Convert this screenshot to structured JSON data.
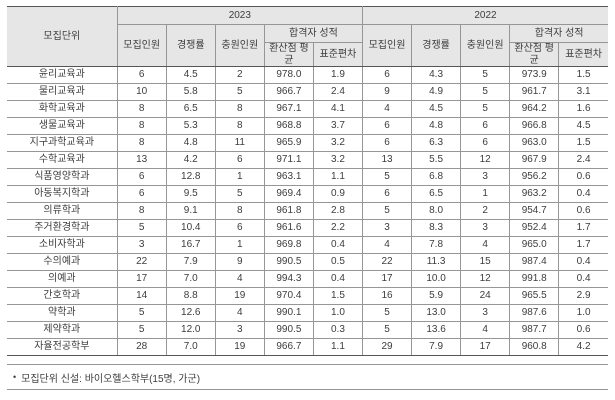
{
  "table": {
    "unit_header": "모집단위",
    "years": [
      "2023",
      "2022"
    ],
    "sub_headers": {
      "recruit": "모집인원",
      "ratio": "경쟁률",
      "fill": "충원인원",
      "score_group": "합격자 성적",
      "avg": "환산점 평균",
      "std": "표준편차"
    },
    "rows": [
      {
        "name": "윤리교육과",
        "values": [
          "6",
          "4.5",
          "2",
          "978.0",
          "1.9",
          "6",
          "4.3",
          "5",
          "973.9",
          "1.5"
        ]
      },
      {
        "name": "물리교육과",
        "values": [
          "10",
          "5.8",
          "5",
          "966.7",
          "2.4",
          "9",
          "4.9",
          "5",
          "961.7",
          "3.1"
        ]
      },
      {
        "name": "화학교육과",
        "values": [
          "8",
          "6.5",
          "8",
          "967.1",
          "4.1",
          "4",
          "4.5",
          "5",
          "964.2",
          "1.6"
        ]
      },
      {
        "name": "생물교육과",
        "values": [
          "8",
          "5.3",
          "8",
          "968.8",
          "3.7",
          "6",
          "4.8",
          "6",
          "966.8",
          "4.5"
        ]
      },
      {
        "name": "지구과학교육과",
        "values": [
          "8",
          "4.8",
          "11",
          "965.9",
          "3.2",
          "6",
          "6.3",
          "6",
          "963.0",
          "1.5"
        ]
      },
      {
        "name": "수학교육과",
        "values": [
          "13",
          "4.2",
          "6",
          "971.1",
          "3.2",
          "13",
          "5.5",
          "12",
          "967.9",
          "2.4"
        ]
      },
      {
        "name": "식품영양학과",
        "values": [
          "6",
          "12.8",
          "1",
          "963.1",
          "1.1",
          "5",
          "6.8",
          "3",
          "956.2",
          "0.6"
        ]
      },
      {
        "name": "아동복지학과",
        "values": [
          "6",
          "9.5",
          "5",
          "969.4",
          "0.9",
          "6",
          "6.5",
          "1",
          "963.2",
          "0.4"
        ]
      },
      {
        "name": "의류학과",
        "values": [
          "8",
          "9.1",
          "8",
          "961.8",
          "2.8",
          "5",
          "8.0",
          "2",
          "954.7",
          "0.6"
        ]
      },
      {
        "name": "주거환경학과",
        "values": [
          "5",
          "10.4",
          "6",
          "961.6",
          "2.2",
          "3",
          "8.3",
          "3",
          "952.4",
          "1.7"
        ]
      },
      {
        "name": "소비자학과",
        "values": [
          "3",
          "16.7",
          "1",
          "969.8",
          "0.4",
          "4",
          "7.8",
          "4",
          "965.0",
          "1.7"
        ]
      },
      {
        "name": "수의예과",
        "values": [
          "22",
          "7.9",
          "9",
          "990.5",
          "0.5",
          "22",
          "11.3",
          "15",
          "987.4",
          "0.4"
        ]
      },
      {
        "name": "의예과",
        "values": [
          "17",
          "7.0",
          "4",
          "994.3",
          "0.4",
          "17",
          "10.0",
          "12",
          "991.8",
          "0.4"
        ]
      },
      {
        "name": "간호학과",
        "values": [
          "14",
          "8.8",
          "19",
          "970.4",
          "1.5",
          "16",
          "5.9",
          "24",
          "965.5",
          "2.9"
        ]
      },
      {
        "name": "약학과",
        "values": [
          "5",
          "12.6",
          "4",
          "990.1",
          "1.0",
          "5",
          "13.0",
          "3",
          "987.6",
          "1.0"
        ]
      },
      {
        "name": "제약학과",
        "values": [
          "5",
          "12.0",
          "3",
          "990.5",
          "0.3",
          "5",
          "13.6",
          "4",
          "987.7",
          "0.6"
        ]
      },
      {
        "name": "자율전공학부",
        "values": [
          "28",
          "7.0",
          "19",
          "966.7",
          "1.1",
          "29",
          "7.9",
          "17",
          "960.8",
          "4.2"
        ]
      }
    ]
  },
  "footnote": {
    "bullet": "•",
    "text": "모집단위 신설: 바이오헬스학부(15명, 가군)"
  }
}
